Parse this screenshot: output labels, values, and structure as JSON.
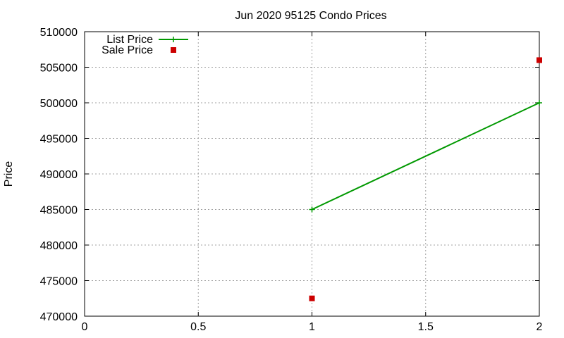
{
  "chart_data": {
    "type": "line",
    "title": "Jun 2020 95125 Condo Prices",
    "xlabel": "",
    "ylabel": "Price",
    "xlim": [
      0,
      2
    ],
    "ylim": [
      470000,
      510000
    ],
    "x_ticks": [
      0,
      0.5,
      1,
      1.5,
      2
    ],
    "x_tick_labels": [
      "0",
      "0.5",
      "1",
      "1.5",
      "2"
    ],
    "y_ticks": [
      470000,
      475000,
      480000,
      485000,
      490000,
      495000,
      500000,
      505000,
      510000
    ],
    "y_tick_labels": [
      "470000",
      "475000",
      "480000",
      "485000",
      "490000",
      "495000",
      "500000",
      "505000",
      "510000"
    ],
    "grid": true,
    "legend_position": "top-left",
    "series": [
      {
        "name": "List Price",
        "style": "line-points",
        "color": "#009900",
        "x": [
          1,
          2
        ],
        "y": [
          485000,
          500000
        ]
      },
      {
        "name": "Sale Price",
        "style": "points",
        "color": "#cc0000",
        "x": [
          1,
          2
        ],
        "y": [
          472500,
          506000
        ]
      }
    ]
  }
}
